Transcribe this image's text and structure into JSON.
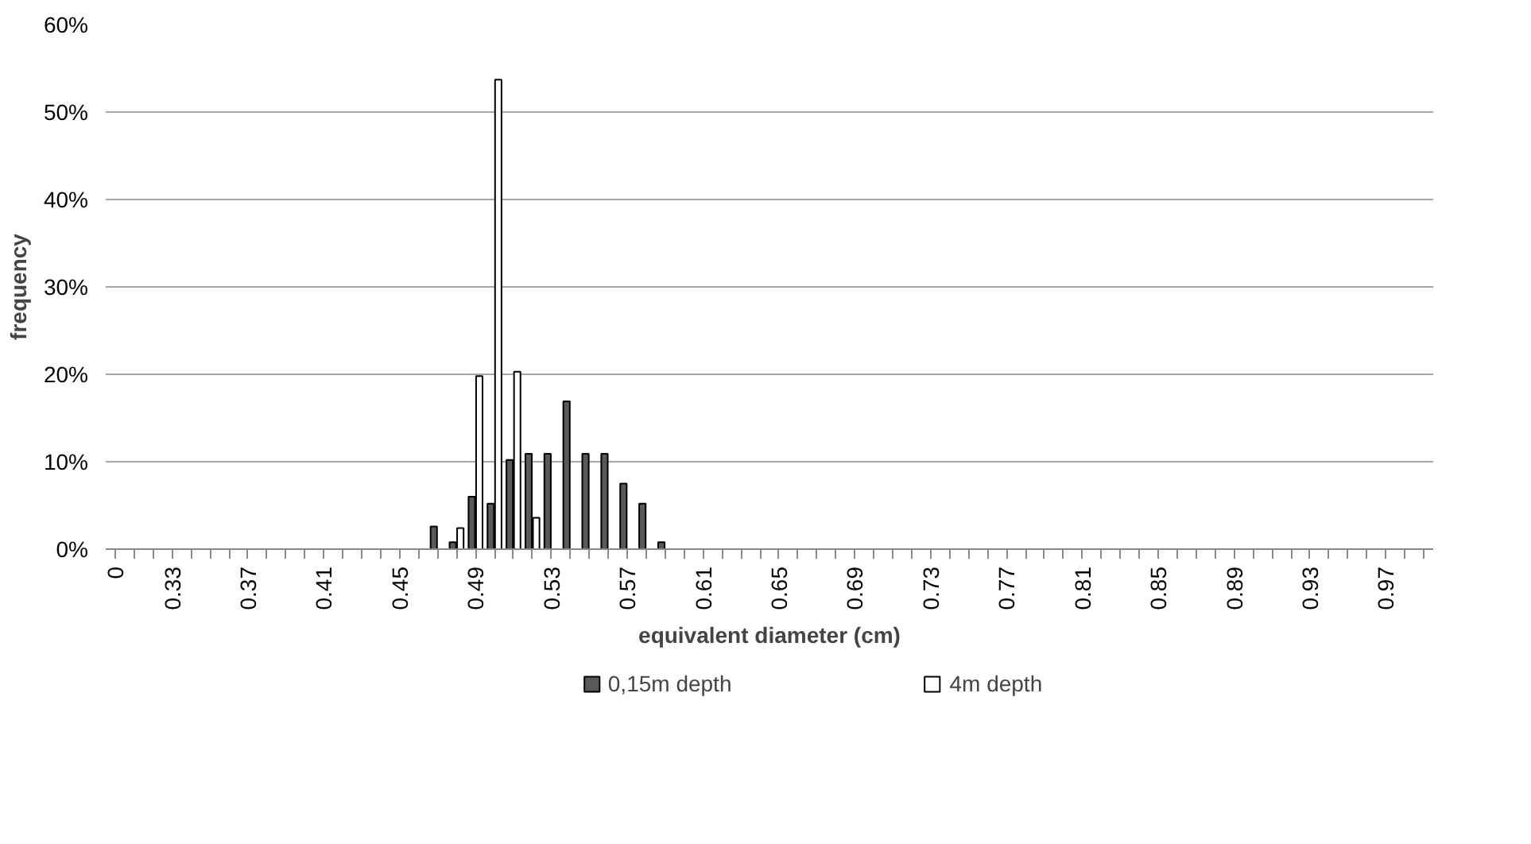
{
  "chart_data": {
    "type": "bar",
    "xlabel": "equivalent diameter (cm)",
    "ylabel": "frequency",
    "categories": [
      "0",
      null,
      null,
      "0.33",
      null,
      null,
      null,
      "0.37",
      null,
      null,
      null,
      "0.41",
      null,
      null,
      null,
      "0.45",
      null,
      null,
      null,
      "0.49",
      null,
      null,
      null,
      "0.53",
      null,
      null,
      null,
      "0.57",
      null,
      null,
      null,
      "0.61",
      null,
      null,
      null,
      "0.65",
      null,
      null,
      null,
      "0.69",
      null,
      null,
      null,
      "0.73",
      null,
      null,
      null,
      "0.77",
      null,
      null,
      null,
      "0.81",
      null,
      null,
      null,
      "0.85",
      null,
      null,
      null,
      "0.89",
      null,
      null,
      null,
      "0.93",
      null,
      null,
      null,
      "0.97",
      null,
      null
    ],
    "series": [
      {
        "name": "0,15m depth",
        "color": "#595959",
        "values": [
          null,
          null,
          null,
          null,
          null,
          null,
          null,
          null,
          null,
          null,
          null,
          null,
          null,
          null,
          null,
          null,
          null,
          2.6,
          0.8,
          6.0,
          5.2,
          10.2,
          10.9,
          10.9,
          16.9,
          10.9,
          10.9,
          7.5,
          5.2,
          0.8,
          null,
          null,
          null,
          null,
          null,
          null,
          null,
          null,
          null,
          null,
          null,
          null,
          null,
          null,
          null,
          null,
          null,
          null,
          null,
          null,
          null,
          null,
          null,
          null,
          null,
          null,
          null,
          null,
          null,
          null,
          null,
          null,
          null,
          null,
          null,
          null,
          null,
          null,
          null,
          null
        ]
      },
      {
        "name": "4m depth",
        "color": "#ffffff",
        "values": [
          null,
          null,
          null,
          null,
          null,
          null,
          null,
          null,
          null,
          null,
          null,
          null,
          null,
          null,
          null,
          null,
          null,
          null,
          2.4,
          19.8,
          53.7,
          20.3,
          3.6,
          null,
          null,
          null,
          null,
          null,
          null,
          null,
          null,
          null,
          null,
          null,
          null,
          null,
          null,
          null,
          null,
          null,
          null,
          null,
          null,
          null,
          null,
          null,
          null,
          null,
          null,
          null,
          null,
          null,
          null,
          null,
          null,
          null,
          null,
          null,
          null,
          null,
          null,
          null,
          null,
          null,
          null,
          null,
          null,
          null,
          null,
          null
        ]
      }
    ],
    "ylim": [
      0,
      60
    ],
    "yticks": [
      {
        "value": 0,
        "label": "0%"
      },
      {
        "value": 10,
        "label": "10%"
      },
      {
        "value": 20,
        "label": "20%"
      },
      {
        "value": 30,
        "label": "30%"
      },
      {
        "value": 40,
        "label": "40%"
      },
      {
        "value": 50,
        "label": "50%"
      },
      {
        "value": 60,
        "label": "60%"
      }
    ],
    "grid": "y",
    "legend": "bottom"
  }
}
